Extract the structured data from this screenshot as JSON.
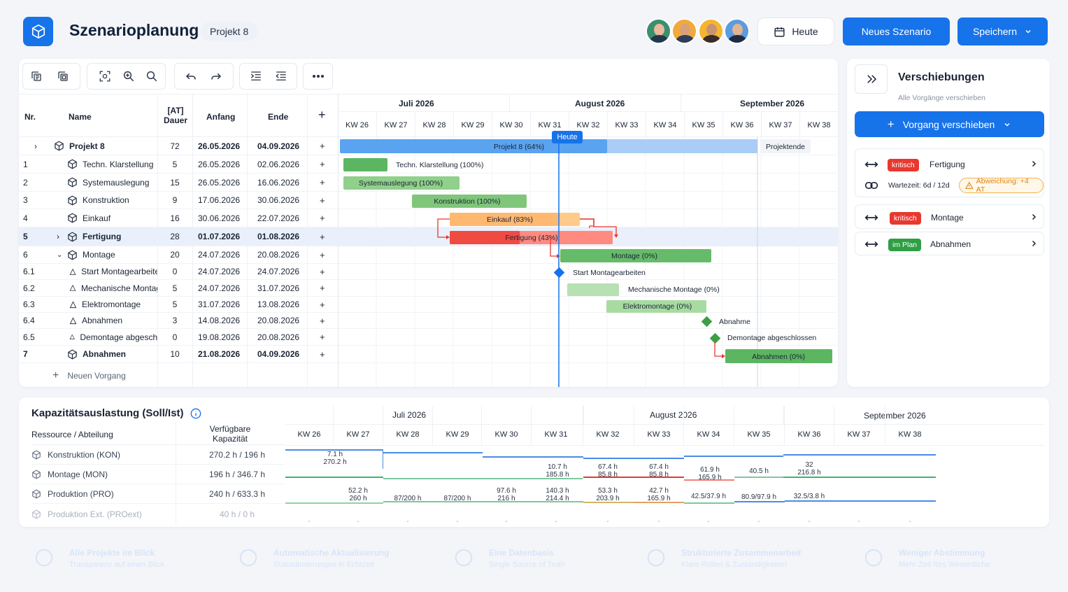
{
  "header": {
    "title": "Szenarioplanung",
    "project_chip": "Projekt 8",
    "today_label": "Heute",
    "new_scenario_label": "Neues Szenario",
    "save_label": "Speichern"
  },
  "table": {
    "col_nr": "Nr.",
    "col_name": "Name",
    "col_duration_1": "[AT]",
    "col_duration_2": "Dauer",
    "col_start": "Anfang",
    "col_end": "Ende",
    "add_symbol": "+",
    "new_task": "Neuen Vorgang",
    "rows": [
      {
        "nr": "",
        "name": "Projekt 8",
        "dur": "72",
        "start": "26.05.2026",
        "end": "04.09.2026",
        "bold": true
      },
      {
        "nr": "1",
        "name": "Techn. Klarstellung",
        "dur": "5",
        "start": "26.05.2026",
        "end": "02.06.2026"
      },
      {
        "nr": "2",
        "name": "Systemauslegung",
        "dur": "15",
        "start": "26.05.2026",
        "end": "16.06.2026"
      },
      {
        "nr": "3",
        "name": "Konstruktion",
        "dur": "9",
        "start": "17.06.2026",
        "end": "30.06.2026"
      },
      {
        "nr": "4",
        "name": "Einkauf",
        "dur": "16",
        "start": "30.06.2026",
        "end": "22.07.2026"
      },
      {
        "nr": "5",
        "name": "Fertigung",
        "dur": "28",
        "start": "01.07.2026",
        "end": "01.08.2026",
        "bold": true
      },
      {
        "nr": "6",
        "name": "Montage",
        "dur": "20",
        "start": "24.07.2026",
        "end": "20.08.2026"
      },
      {
        "nr": "6.1",
        "name": "Start Montagearbeiten",
        "dur": "0",
        "start": "24.07.2026",
        "end": "24.07.2026"
      },
      {
        "nr": "6.2",
        "name": "Mechanische Montage",
        "dur": "5",
        "start": "24.07.2026",
        "end": "31.07.2026"
      },
      {
        "nr": "6.3",
        "name": "Elektromontage",
        "dur": "5",
        "start": "31.07.2026",
        "end": "13.08.2026"
      },
      {
        "nr": "6.4",
        "name": "Abnahmen",
        "dur": "3",
        "start": "14.08.2026",
        "end": "20.08.2026"
      },
      {
        "nr": "6.5",
        "name": "Demontage abgeschlossen",
        "dur": "0",
        "start": "19.08.2026",
        "end": "20.08.2026"
      },
      {
        "nr": "7",
        "name": "Abnahmen",
        "dur": "10",
        "start": "21.08.2026",
        "end": "04.09.2026",
        "bold": true
      }
    ]
  },
  "gantt": {
    "months": [
      "Juli 2026",
      "August 2026",
      "September 2026"
    ],
    "weeks": [
      "KW 26",
      "KW 27",
      "KW 28",
      "KW 29",
      "KW 30",
      "KW 31",
      "KW 32",
      "KW 33",
      "KW 34",
      "KW 35",
      "KW 36",
      "KW 37",
      "KW 38"
    ],
    "today_label": "Heute",
    "project_end_label": "Projektende",
    "bars": {
      "projekt": "Projekt 8 (64%)",
      "klarstellung": "Techn. Klarstellung (100%)",
      "systemauslegung": "Systemauslegung (100%)",
      "konstruktion": "Konstruktion (100%)",
      "einkauf": "Einkauf (83%)",
      "fertigung": "Fertigung (43%)",
      "montage": "Montage (0%)",
      "start_montage": "Start Montagearbeiten",
      "mech_montage": "Mechanische Montage (0%)",
      "elektro": "Elektromontage (0%)",
      "abnahme_ms": "Abnahme",
      "demontage": "Demontage abgeschlossen",
      "abnahmen": "Abnahmen (0%)"
    },
    "progress": {
      "projekt": 0.64,
      "einkauf": 0.83,
      "fertigung": 0.43
    }
  },
  "side_panel": {
    "title": "Verschiebungen",
    "subtitle": "Alle Vorgänge verschieben",
    "move_button": "Vorgang verschieben",
    "items": [
      {
        "badge": "kritisch",
        "badge_color": "#e8382f",
        "label": "Fertigung",
        "wait": "Wartezeit: 6d / 12d",
        "deviation": "Abweichung: +4 AT"
      },
      {
        "badge": "kritisch",
        "badge_color": "#e8382f",
        "label": "Montage"
      },
      {
        "badge": "im Plan",
        "badge_color": "#2f9e44",
        "label": "Abnahmen"
      }
    ]
  },
  "capacity": {
    "title": "Kapazitätsauslastung (Soll/Ist)",
    "col_resource": "Ressource / Abteilung",
    "col_available_1": "Verfügbare",
    "col_available_2": "Kapazität",
    "months": [
      "Juli 2026",
      "August 2026",
      "September 2026"
    ],
    "weeks": [
      "KW 26",
      "KW 27",
      "KW 28",
      "KW 29",
      "KW 30",
      "KW 31",
      "KW 32",
      "KW 33",
      "KW 34",
      "KW 35",
      "KW 36",
      "KW 37",
      "KW 38"
    ],
    "resources": [
      {
        "name": "Konstruktion (KON)",
        "cap": "270.2 h / 196 h"
      },
      {
        "name": "Montage (MON)",
        "cap": "196 h / 346.7 h"
      },
      {
        "name": "Produktion (PRO)",
        "cap": "240 h / 633.3 h"
      },
      {
        "name": "Produktion Ext. (PROext)",
        "cap": "40 h / 0 h"
      }
    ],
    "labels": {
      "k1a": "7.1 h",
      "k1b": "270.2 h",
      "m31a": "10.7 h",
      "m31b": "185.8 h",
      "m32a": "67.4 h",
      "m32b": "85.8 h",
      "m33a": "67.4 h",
      "m33b": "85.8 h",
      "m34a": "61.9 h",
      "m34b": "165.9 h",
      "m35": "40.5 h",
      "m36a": "32",
      "m36b": "216.8 h",
      "p27a": "52.2 h",
      "p27b": "260 h",
      "p28": "87/200 h",
      "p29": "87/200 h",
      "p30a": "97.6 h",
      "p30b": "216 h",
      "p31a": "140.3 h",
      "p31b": "214.4 h",
      "p32a": "53.3 h",
      "p32b": "203.9 h",
      "p33a": "42.7 h",
      "p33b": "165.9 h",
      "p34": "42.5/37.9 h",
      "p35": "80.9/97.9 h",
      "p36": "32.5/3.8 h",
      "dash": "-"
    }
  },
  "footer": {
    "items": [
      "Alle Projekte im Blick",
      "Automatische Aktualisierung",
      "Eine Datenbasis",
      "Strukturierte Zusammenarbeit",
      "Weniger Abstimmung"
    ],
    "subs": [
      "Transparenz auf einen Blick",
      "Statusänderungen in Echtzeit",
      "Single Source of Truth",
      "Klare Rollen & Zuständigkeiten",
      "Mehr Zeit fürs Wesentliche"
    ]
  },
  "colors": {
    "accent": "#1673ea",
    "critical": "#e8382f",
    "in_plan": "#2f9e44",
    "green_bar": "#6cc06f",
    "orange_bar": "#ffb870"
  }
}
